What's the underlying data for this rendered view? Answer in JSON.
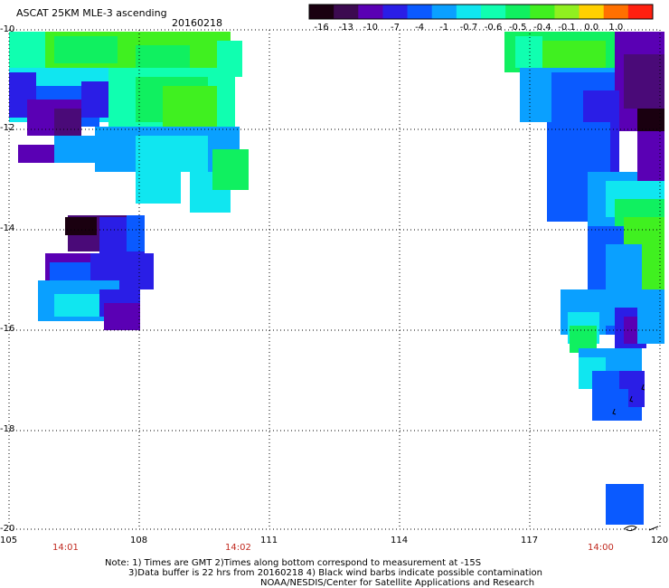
{
  "header": {
    "title": "ASCAT 25KM MLE-3 ascending",
    "date": "20160218"
  },
  "colorbar": {
    "labels": [
      "-16",
      "-13",
      "-10",
      "-7",
      "-4",
      "-1",
      "-0.7",
      "-0.6",
      "-0.5",
      "-0.4",
      "-0.1",
      "0.0",
      "1.0"
    ],
    "colors": [
      "#1a0010",
      "#3c0a50",
      "#5a00b4",
      "#2a1ee6",
      "#0a5aff",
      "#0aa0ff",
      "#10e6f0",
      "#10ffb0",
      "#10f060",
      "#40f020",
      "#90f020",
      "#ffd000",
      "#ff7000",
      "#ff2010"
    ]
  },
  "map": {
    "lon_ticks": [
      "105",
      "108",
      "111",
      "114",
      "117",
      "120"
    ],
    "lat_ticks": [
      "-10",
      "-12",
      "-14",
      "-16",
      "-18",
      "-20"
    ],
    "time_labels": [
      "14:01",
      "14:02",
      "14:00"
    ],
    "time_label_color": "#c0281e",
    "grid": "dotted"
  },
  "notes": {
    "line1": "Note: 1) Times are GMT 2)Times along bottom correspond to measurement at -15S",
    "line2": "3)Data buffer is 22 hrs from 20160218 4) Black wind barbs indicate possible contamination",
    "line3": "NOAA/NESDIS/Center for Satellite Applications and Research"
  }
}
